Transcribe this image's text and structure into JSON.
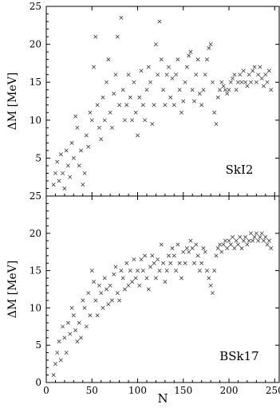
{
  "chart_data": [
    {
      "type": "scatter",
      "panel_label": "SkI2",
      "ylabel": "ΔM [MeV]",
      "xlim": [
        0,
        255
      ],
      "ylim": [
        0,
        25
      ],
      "yticks": [
        5,
        10,
        15,
        20,
        25
      ],
      "xticks": [
        0,
        50,
        100,
        150,
        200,
        250
      ],
      "show_tick_labels_x": false,
      "marker": "x",
      "color": "#3a3a3a",
      "series": [
        {
          "points": [
            [
              8,
              1.5
            ],
            [
              10,
              3
            ],
            [
              12,
              4.5
            ],
            [
              14,
              2
            ],
            [
              16,
              5.5
            ],
            [
              18,
              3
            ],
            [
              20,
              1
            ],
            [
              22,
              6
            ],
            [
              24,
              4
            ],
            [
              26,
              2.5
            ],
            [
              28,
              7
            ],
            [
              30,
              5
            ],
            [
              32,
              10.5
            ],
            [
              34,
              9
            ],
            [
              36,
              4
            ],
            [
              38,
              6
            ],
            [
              40,
              1.5
            ],
            [
              42,
              3
            ],
            [
              44,
              8
            ],
            [
              46,
              6.5
            ],
            [
              48,
              11
            ],
            [
              50,
              10
            ],
            [
              52,
              17
            ],
            [
              54,
              21
            ],
            [
              56,
              12
            ],
            [
              58,
              9
            ],
            [
              60,
              7.5
            ],
            [
              62,
              13
            ],
            [
              64,
              10
            ],
            [
              66,
              15
            ],
            [
              68,
              18
            ],
            [
              70,
              11
            ],
            [
              72,
              9
            ],
            [
              74,
              13.5
            ],
            [
              76,
              16
            ],
            [
              78,
              21
            ],
            [
              80,
              12
            ],
            [
              82,
              23.5
            ],
            [
              84,
              14
            ],
            [
              86,
              10
            ],
            [
              88,
              12
            ],
            [
              90,
              16
            ],
            [
              92,
              13
            ],
            [
              94,
              10
            ],
            [
              96,
              15
            ],
            [
              98,
              11
            ],
            [
              100,
              8
            ],
            [
              102,
              13
            ],
            [
              104,
              16.5
            ],
            [
              106,
              12
            ],
            [
              108,
              10
            ],
            [
              110,
              14
            ],
            [
              112,
              17
            ],
            [
              114,
              15
            ],
            [
              116,
              9.5
            ],
            [
              118,
              12
            ],
            [
              120,
              20
            ],
            [
              122,
              16
            ],
            [
              124,
              23
            ],
            [
              126,
              18
            ],
            [
              128,
              14
            ],
            [
              130,
              12
            ],
            [
              132,
              16
            ],
            [
              134,
              17
            ],
            [
              136,
              13
            ],
            [
              138,
              15.5
            ],
            [
              140,
              12
            ],
            [
              142,
              16
            ],
            [
              144,
              18
            ],
            [
              146,
              14
            ],
            [
              148,
              11
            ],
            [
              150,
              12.5
            ],
            [
              152,
              15
            ],
            [
              154,
              17
            ],
            [
              156,
              18.5
            ],
            [
              158,
              19
            ],
            [
              160,
              14
            ],
            [
              162,
              12.5
            ],
            [
              164,
              16
            ],
            [
              166,
              18
            ],
            [
              168,
              13.5
            ],
            [
              170,
              12
            ],
            [
              172,
              14
            ],
            [
              174,
              16
            ],
            [
              176,
              18
            ],
            [
              178,
              19.5
            ],
            [
              180,
              20
            ],
            [
              182,
              15
            ],
            [
              184,
              11
            ],
            [
              186,
              9.5
            ],
            [
              188,
              13
            ],
            [
              190,
              14
            ],
            [
              192,
              15
            ],
            [
              194,
              14.5
            ],
            [
              196,
              14
            ],
            [
              198,
              13.5
            ],
            [
              200,
              14
            ],
            [
              202,
              15
            ],
            [
              204,
              15.5
            ],
            [
              206,
              16
            ],
            [
              208,
              14
            ],
            [
              210,
              15
            ],
            [
              212,
              16
            ],
            [
              214,
              15
            ],
            [
              216,
              16.5
            ],
            [
              218,
              15
            ],
            [
              220,
              14.5
            ],
            [
              222,
              16
            ],
            [
              224,
              15
            ],
            [
              226,
              16.5
            ],
            [
              228,
              17
            ],
            [
              230,
              15
            ],
            [
              232,
              16
            ],
            [
              234,
              17
            ],
            [
              236,
              15.5
            ],
            [
              238,
              14.5
            ],
            [
              240,
              16
            ],
            [
              242,
              15
            ],
            [
              244,
              16.5
            ],
            [
              246,
              14
            ]
          ]
        }
      ]
    },
    {
      "type": "scatter",
      "panel_label": "BSk17",
      "ylabel": "ΔM [MeV]",
      "xlabel": "N",
      "xlim": [
        0,
        255
      ],
      "ylim": [
        0,
        25
      ],
      "yticks": [
        0,
        5,
        10,
        15,
        20,
        25
      ],
      "xticks": [
        0,
        50,
        100,
        150,
        200,
        250
      ],
      "marker": "x",
      "color": "#3a3a3a",
      "series": [
        {
          "points": [
            [
              8,
              1
            ],
            [
              10,
              2.5
            ],
            [
              12,
              4
            ],
            [
              14,
              5.5
            ],
            [
              16,
              3
            ],
            [
              18,
              7.5
            ],
            [
              20,
              6
            ],
            [
              22,
              4
            ],
            [
              24,
              8
            ],
            [
              26,
              6.5
            ],
            [
              28,
              10
            ],
            [
              30,
              9
            ],
            [
              32,
              7
            ],
            [
              34,
              5.5
            ],
            [
              36,
              8
            ],
            [
              38,
              6
            ],
            [
              40,
              11
            ],
            [
              42,
              10
            ],
            [
              44,
              7.5
            ],
            [
              46,
              12
            ],
            [
              48,
              9
            ],
            [
              50,
              15
            ],
            [
              52,
              13.5
            ],
            [
              54,
              11
            ],
            [
              56,
              9
            ],
            [
              58,
              13
            ],
            [
              60,
              12
            ],
            [
              62,
              10
            ],
            [
              64,
              14
            ],
            [
              66,
              12.5
            ],
            [
              68,
              10.5
            ],
            [
              70,
              13
            ],
            [
              72,
              11
            ],
            [
              74,
              14.5
            ],
            [
              76,
              15.5
            ],
            [
              78,
              12
            ],
            [
              80,
              11
            ],
            [
              82,
              15
            ],
            [
              84,
              14
            ],
            [
              86,
              12.5
            ],
            [
              88,
              16
            ],
            [
              90,
              13
            ],
            [
              92,
              15
            ],
            [
              94,
              13.5
            ],
            [
              96,
              16.5
            ],
            [
              98,
              14
            ],
            [
              100,
              15
            ],
            [
              102,
              13
            ],
            [
              104,
              16.5
            ],
            [
              106,
              15
            ],
            [
              108,
              17
            ],
            [
              110,
              14
            ],
            [
              112,
              12.5
            ],
            [
              114,
              15.5
            ],
            [
              116,
              17
            ],
            [
              118,
              16
            ],
            [
              120,
              14
            ],
            [
              122,
              16.5
            ],
            [
              124,
              15
            ],
            [
              126,
              18.5
            ],
            [
              128,
              16
            ],
            [
              130,
              13.5
            ],
            [
              132,
              15
            ],
            [
              134,
              17
            ],
            [
              136,
              16
            ],
            [
              138,
              18
            ],
            [
              140,
              17
            ],
            [
              142,
              15
            ],
            [
              144,
              18.5
            ],
            [
              146,
              16
            ],
            [
              148,
              14
            ],
            [
              150,
              17.5
            ],
            [
              152,
              16
            ],
            [
              154,
              18
            ],
            [
              156,
              17.5
            ],
            [
              158,
              19
            ],
            [
              160,
              18
            ],
            [
              162,
              16
            ],
            [
              164,
              18.5
            ],
            [
              166,
              17
            ],
            [
              168,
              15
            ],
            [
              170,
              16
            ],
            [
              172,
              18
            ],
            [
              174,
              17.5
            ],
            [
              176,
              15
            ],
            [
              178,
              14
            ],
            [
              180,
              13
            ],
            [
              182,
              12
            ],
            [
              184,
              15
            ],
            [
              186,
              17
            ],
            [
              188,
              18
            ],
            [
              190,
              18.5
            ],
            [
              192,
              17.5
            ],
            [
              194,
              18.5
            ],
            [
              196,
              19
            ],
            [
              198,
              18
            ],
            [
              200,
              19
            ],
            [
              202,
              18.5
            ],
            [
              204,
              19.5
            ],
            [
              206,
              18
            ],
            [
              208,
              19
            ],
            [
              210,
              18.5
            ],
            [
              212,
              19.5
            ],
            [
              214,
              18
            ],
            [
              216,
              19
            ],
            [
              218,
              19.5
            ],
            [
              220,
              18.5
            ],
            [
              222,
              19
            ],
            [
              224,
              20
            ],
            [
              226,
              19
            ],
            [
              228,
              19.5
            ],
            [
              230,
              20
            ],
            [
              232,
              19
            ],
            [
              234,
              19.5
            ],
            [
              236,
              20
            ],
            [
              238,
              19
            ],
            [
              240,
              19.5
            ],
            [
              242,
              18.5
            ],
            [
              244,
              19
            ],
            [
              246,
              18
            ]
          ]
        }
      ]
    }
  ]
}
